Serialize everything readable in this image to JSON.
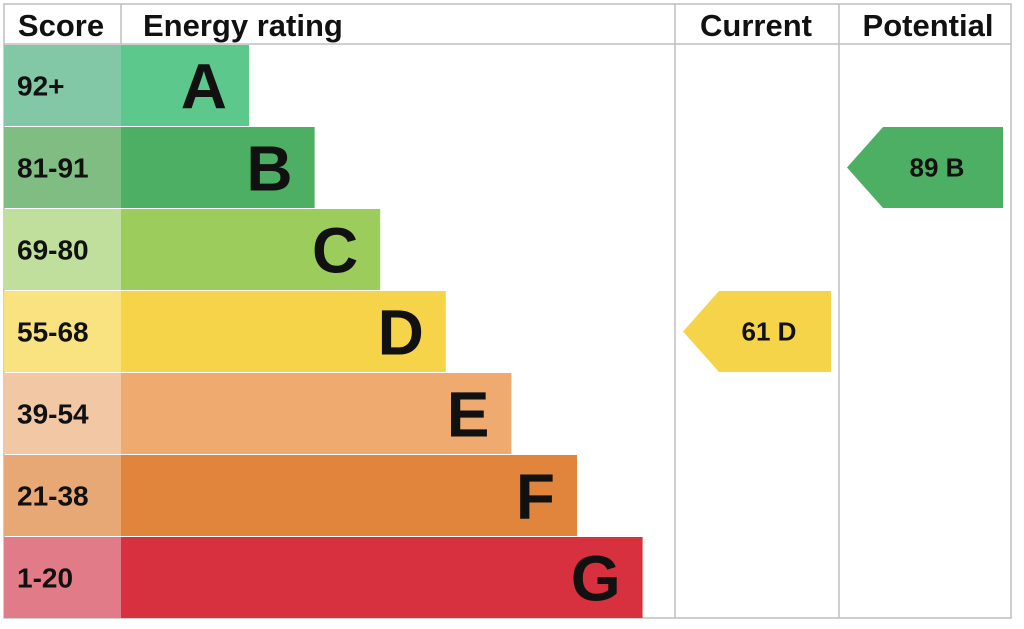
{
  "headers": {
    "score": "Score",
    "energy_rating": "Energy rating",
    "current": "Current",
    "potential": "Potential"
  },
  "chart_data": {
    "type": "bar",
    "categories": [
      "A",
      "B",
      "C",
      "D",
      "E",
      "F",
      "G"
    ],
    "score_ranges": [
      "92+",
      "81-91",
      "69-80",
      "55-68",
      "39-54",
      "21-38",
      "1-20"
    ],
    "bar_colors": [
      "#5cc88c",
      "#4daf63",
      "#9bcc5c",
      "#f6d44a",
      "#efab6f",
      "#e0853b",
      "#d7303e"
    ],
    "score_cell_colors": [
      "#82c7a6",
      "#7fbd82",
      "#c1df9c",
      "#f9e380",
      "#f2c7a4",
      "#e8a875",
      "#e07b87"
    ],
    "current": {
      "value": 61,
      "band": "D",
      "label": "61  D",
      "color": "#f6d44a"
    },
    "potential": {
      "value": 89,
      "band": "B",
      "label": "89  B",
      "color": "#4daf63"
    }
  }
}
